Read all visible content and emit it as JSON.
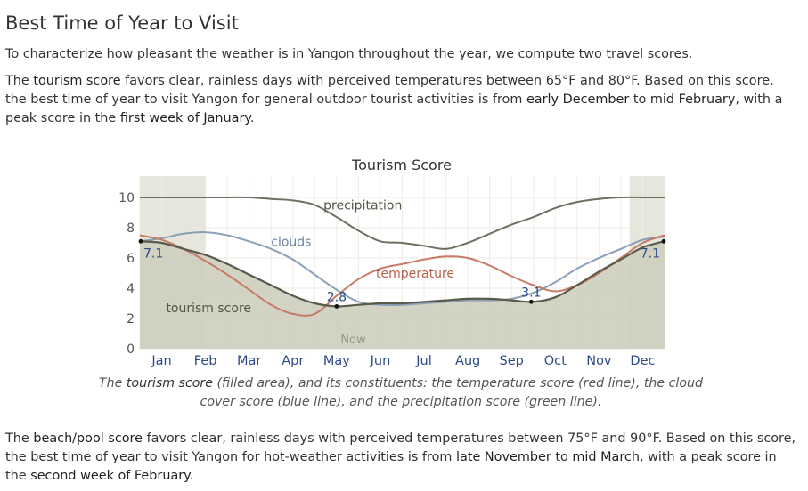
{
  "heading": "Best Time of Year to Visit",
  "intro": "To characterize how pleasant the weather is in Yangon throughout the year, we compute two travel scores.",
  "tourism_paragraph": {
    "t1": "The ",
    "h1": "tourism score",
    "t2": " favors clear, rainless days with perceived temperatures between 65°F and 80°F. Based on this score, the best time of year to visit Yangon for general outdoor tourist activities is from ",
    "h2": "early December",
    "t3": " to ",
    "h3": "mid February",
    "t4": ", with a peak score in the ",
    "h4": "first week of January",
    "t5": "."
  },
  "caption": {
    "c1": "The ",
    "c2": "tourism score",
    "c3": " (filled area), and its constituents: the temperature score (red line), the cloud cover score (blue line), and the precipitation score (green line)."
  },
  "beach_paragraph": {
    "t1": "The ",
    "h1": "beach/pool score",
    "t2": " favors clear, rainless days with perceived temperatures between 75°F and 90°F. Based on this score, the best time of year to visit Yangon for hot-weather activities is from ",
    "h2": "late November",
    "t3": " to ",
    "h3": "mid March",
    "t4": ", with a peak score in the ",
    "h4": "second week of February",
    "t5": "."
  },
  "colors": {
    "tourism_fill": "#cfcfbf",
    "tourism_line": "#5a5a4a",
    "temperature": "#c77a66",
    "clouds": "#8aa0b8",
    "precipitation": "#6f6f62",
    "best_band": "#e6e6dc",
    "axis_month": "#2c4a8a"
  },
  "chart_data": {
    "type": "area",
    "title": "Tourism Score",
    "xlabel": "",
    "ylabel": "",
    "ylim": [
      0,
      10
    ],
    "yticks": [
      "0",
      "2",
      "4",
      "6",
      "8",
      "10"
    ],
    "months": [
      "Jan",
      "Feb",
      "Mar",
      "Apr",
      "May",
      "Jun",
      "Jul",
      "Aug",
      "Sep",
      "Oct",
      "Nov",
      "Dec"
    ],
    "best_periods_month_index": [
      [
        0,
        1.5
      ],
      [
        11.2,
        12
      ]
    ],
    "now_label": "Now",
    "now_month_index": 4.55,
    "series": [
      {
        "name": "tourism score",
        "label_at_month_index": 0.6,
        "label_value": 2.4,
        "points": [
          [
            0,
            7.1
          ],
          [
            0.5,
            7.0
          ],
          [
            1,
            6.6
          ],
          [
            1.5,
            6.2
          ],
          [
            2,
            5.6
          ],
          [
            2.5,
            4.9
          ],
          [
            3,
            4.2
          ],
          [
            3.5,
            3.5
          ],
          [
            4,
            3.0
          ],
          [
            4.5,
            2.8
          ],
          [
            5,
            2.9
          ],
          [
            5.5,
            3.0
          ],
          [
            6,
            3.0
          ],
          [
            6.5,
            3.1
          ],
          [
            7,
            3.2
          ],
          [
            7.5,
            3.3
          ],
          [
            8,
            3.3
          ],
          [
            8.5,
            3.2
          ],
          [
            9,
            3.1
          ],
          [
            9.5,
            3.4
          ],
          [
            10,
            4.2
          ],
          [
            10.5,
            5.1
          ],
          [
            11,
            5.9
          ],
          [
            11.5,
            6.7
          ],
          [
            12,
            7.1
          ]
        ]
      },
      {
        "name": "temperature",
        "label_at_month_index": 5.4,
        "label_value": 4.7,
        "points": [
          [
            0,
            7.5
          ],
          [
            0.5,
            7.2
          ],
          [
            1,
            6.6
          ],
          [
            1.5,
            5.8
          ],
          [
            2,
            4.9
          ],
          [
            2.5,
            3.9
          ],
          [
            3,
            2.9
          ],
          [
            3.5,
            2.3
          ],
          [
            4,
            2.3
          ],
          [
            4.5,
            3.5
          ],
          [
            5,
            4.6
          ],
          [
            5.5,
            5.3
          ],
          [
            6,
            5.6
          ],
          [
            6.5,
            5.9
          ],
          [
            7,
            6.1
          ],
          [
            7.5,
            6.0
          ],
          [
            8,
            5.5
          ],
          [
            8.5,
            4.8
          ],
          [
            9,
            4.2
          ],
          [
            9.5,
            3.8
          ],
          [
            10,
            4.2
          ],
          [
            10.5,
            5.0
          ],
          [
            11,
            6.0
          ],
          [
            11.5,
            7.0
          ],
          [
            12,
            7.5
          ]
        ]
      },
      {
        "name": "clouds",
        "label_at_month_index": 3.0,
        "label_value": 6.8,
        "points": [
          [
            0,
            7.1
          ],
          [
            0.5,
            7.3
          ],
          [
            1,
            7.6
          ],
          [
            1.5,
            7.7
          ],
          [
            2,
            7.5
          ],
          [
            2.5,
            7.1
          ],
          [
            3,
            6.6
          ],
          [
            3.5,
            5.9
          ],
          [
            4,
            4.9
          ],
          [
            4.5,
            3.9
          ],
          [
            5,
            3.1
          ],
          [
            5.5,
            2.9
          ],
          [
            6,
            2.9
          ],
          [
            6.5,
            3.0
          ],
          [
            7,
            3.1
          ],
          [
            7.5,
            3.2
          ],
          [
            8,
            3.2
          ],
          [
            8.5,
            3.3
          ],
          [
            9,
            3.7
          ],
          [
            9.5,
            4.4
          ],
          [
            10,
            5.3
          ],
          [
            10.5,
            6.0
          ],
          [
            11,
            6.6
          ],
          [
            11.5,
            7.2
          ],
          [
            12,
            7.4
          ]
        ]
      },
      {
        "name": "precipitation",
        "label_at_month_index": 4.2,
        "label_value": 9.2,
        "points": [
          [
            0,
            10.0
          ],
          [
            0.5,
            10.0
          ],
          [
            1,
            10.0
          ],
          [
            1.5,
            10.0
          ],
          [
            2,
            10.0
          ],
          [
            2.5,
            10.0
          ],
          [
            3,
            9.9
          ],
          [
            3.5,
            9.8
          ],
          [
            4,
            9.5
          ],
          [
            4.5,
            8.7
          ],
          [
            5,
            7.8
          ],
          [
            5.5,
            7.1
          ],
          [
            6,
            7.0
          ],
          [
            6.5,
            6.8
          ],
          [
            7,
            6.6
          ],
          [
            7.5,
            7.0
          ],
          [
            8,
            7.6
          ],
          [
            8.5,
            8.2
          ],
          [
            9,
            8.7
          ],
          [
            9.5,
            9.3
          ],
          [
            10,
            9.7
          ],
          [
            10.5,
            9.9
          ],
          [
            11,
            10.0
          ],
          [
            11.5,
            10.0
          ],
          [
            12,
            10.0
          ]
        ]
      }
    ],
    "annotations": [
      {
        "text": "7.1",
        "month_index": 0.02,
        "value": 7.1
      },
      {
        "text": "2.8",
        "month_index": 4.5,
        "value": 2.8
      },
      {
        "text": "3.1",
        "month_index": 8.95,
        "value": 3.1
      },
      {
        "text": "7.1",
        "month_index": 11.98,
        "value": 7.1
      }
    ]
  }
}
